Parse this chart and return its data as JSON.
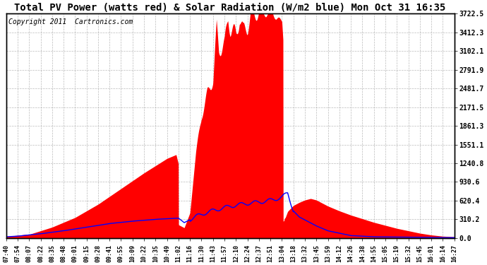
{
  "title": "Total PV Power (watts red) & Solar Radiation (W/m2 blue) Mon Oct 31 16:35",
  "copyright": "Copyright 2011  Cartronics.com",
  "yticks": [
    0.0,
    310.2,
    620.4,
    930.6,
    1240.8,
    1551.1,
    1861.3,
    2171.5,
    2481.7,
    2791.9,
    3102.1,
    3412.3,
    3722.5
  ],
  "ymax": 3722.5,
  "ymin": 0.0,
  "bg_color": "#ffffff",
  "plot_bg": "#ffffff",
  "grid_color": "#aaaaaa",
  "fill_color": "red",
  "line_color": "blue",
  "title_fontsize": 10,
  "copyright_fontsize": 7,
  "xtick_labels": [
    "07:40",
    "07:54",
    "08:07",
    "08:22",
    "08:35",
    "08:48",
    "09:01",
    "09:15",
    "09:28",
    "09:41",
    "09:55",
    "10:09",
    "10:22",
    "10:35",
    "10:49",
    "11:02",
    "11:16",
    "11:30",
    "11:43",
    "11:57",
    "12:10",
    "12:24",
    "12:37",
    "12:51",
    "13:04",
    "13:18",
    "13:32",
    "13:45",
    "13:59",
    "14:12",
    "14:26",
    "14:38",
    "14:55",
    "15:05",
    "15:19",
    "15:32",
    "15:45",
    "16:01",
    "16:14",
    "16:27"
  ]
}
